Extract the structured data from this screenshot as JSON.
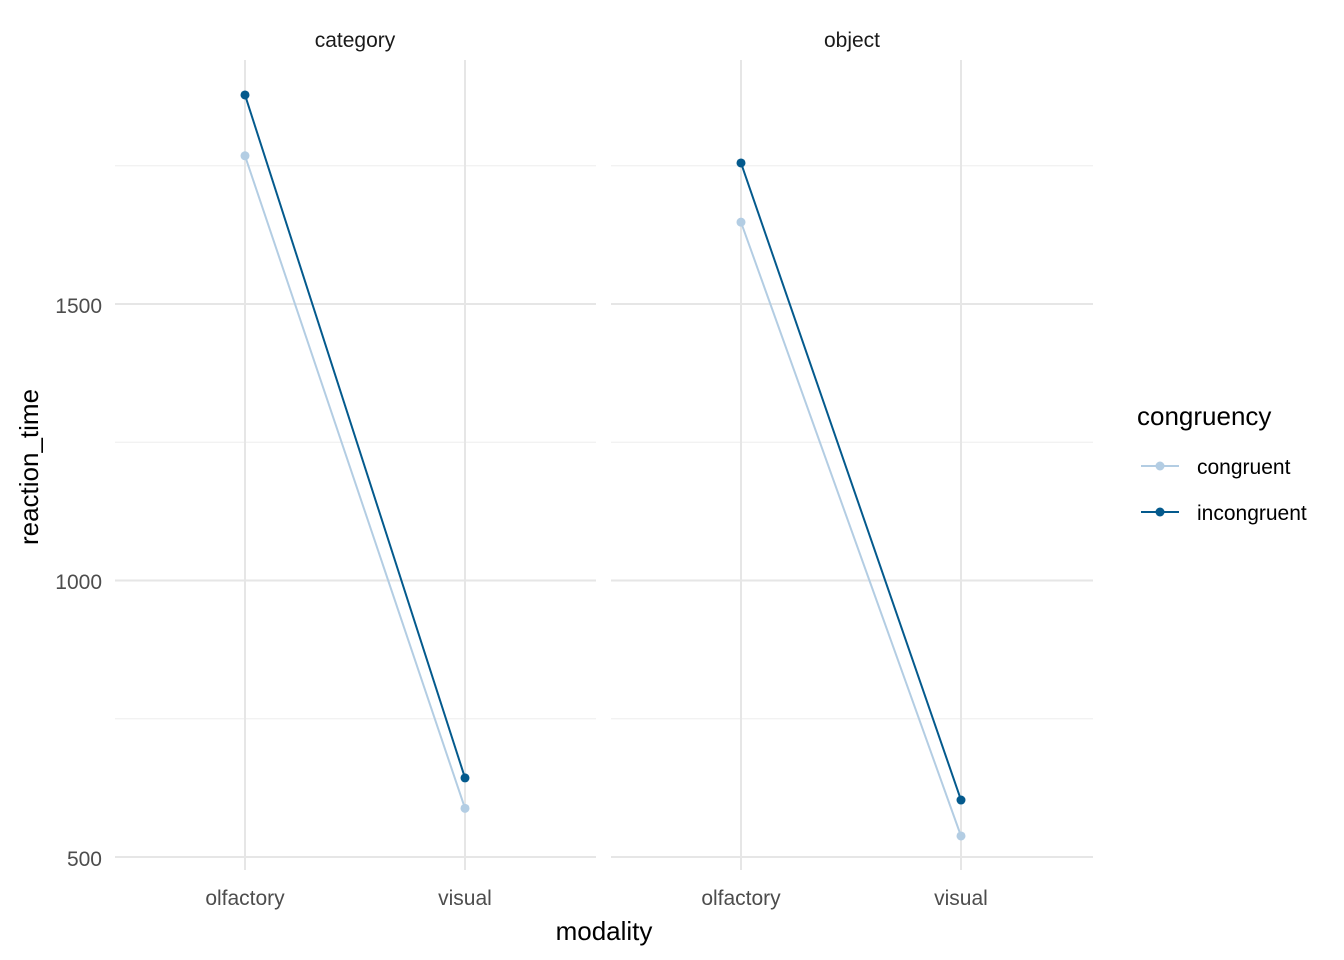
{
  "chart_data": {
    "type": "line",
    "facets": [
      "category",
      "object"
    ],
    "x_categories": [
      "olfactory",
      "visual"
    ],
    "xlabel": "modality",
    "ylabel": "reaction_time",
    "y_ticks": [
      500,
      1000,
      1500
    ],
    "ylim": [
      500,
      1900
    ],
    "grid": true,
    "legend": {
      "title": "congruency",
      "placement": "right",
      "entries": [
        "congruent",
        "incongruent"
      ]
    },
    "series": [
      {
        "name": "congruent",
        "color": "#b3cde3",
        "values": {
          "category": [
            1768,
            588
          ],
          "object": [
            1648,
            538
          ]
        }
      },
      {
        "name": "incongruent",
        "color": "#045a8d",
        "values": {
          "category": [
            1878,
            643
          ],
          "object": [
            1755,
            603
          ]
        }
      }
    ]
  }
}
